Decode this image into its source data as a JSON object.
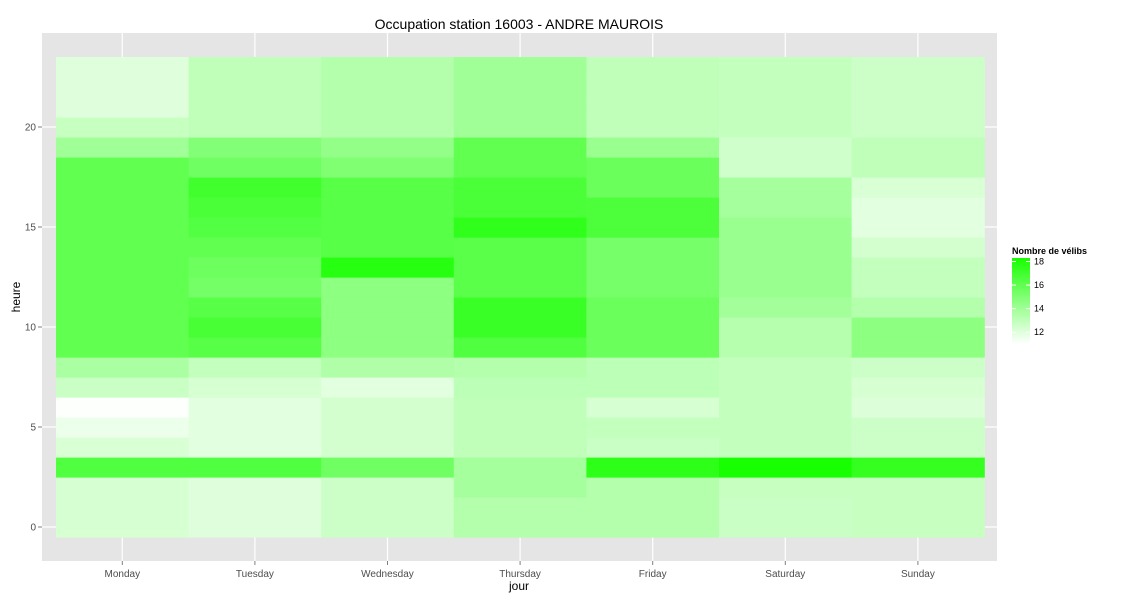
{
  "chart_data": {
    "type": "heatmap",
    "title": "Occupation station 16003 - ANDRE MAUROIS",
    "xlabel": "jour",
    "ylabel": "heure",
    "x": [
      "Monday",
      "Tuesday",
      "Wednesday",
      "Thursday",
      "Friday",
      "Saturday",
      "Sunday"
    ],
    "y": [
      0,
      1,
      2,
      3,
      4,
      5,
      6,
      7,
      8,
      9,
      10,
      11,
      12,
      13,
      14,
      15,
      16,
      17,
      18,
      19,
      20,
      21,
      22,
      23
    ],
    "y_ticks": [
      0,
      5,
      10,
      15,
      20
    ],
    "values": [
      [
        12.3,
        12.3,
        12.3,
        16.5,
        12.2,
        11.6,
        11.1,
        12.7,
        13.7,
        16.0,
        16.0,
        16.0,
        16.0,
        16.0,
        16.0,
        16.0,
        16.0,
        16.0,
        16.0,
        14.0,
        12.8,
        12.0,
        12.0,
        12.0
      ],
      [
        12.0,
        12.0,
        12.0,
        16.5,
        11.9,
        11.9,
        11.9,
        12.3,
        12.9,
        16.3,
        16.8,
        16.3,
        15.4,
        15.6,
        16.0,
        16.4,
        16.7,
        17.0,
        15.5,
        14.9,
        13.0,
        13.0,
        13.0,
        13.0
      ],
      [
        12.6,
        12.6,
        12.6,
        15.5,
        12.4,
        12.4,
        12.4,
        11.9,
        13.5,
        14.6,
        14.6,
        14.6,
        14.6,
        17.8,
        16.3,
        16.3,
        16.3,
        16.3,
        15.0,
        14.4,
        13.4,
        13.4,
        13.4,
        13.4
      ],
      [
        13.4,
        13.4,
        13.8,
        13.8,
        13.0,
        13.0,
        13.0,
        13.1,
        13.4,
        16.5,
        17.2,
        17.2,
        16.2,
        16.2,
        16.2,
        17.5,
        16.7,
        16.7,
        16.0,
        16.0,
        14.0,
        14.0,
        14.0,
        14.0
      ],
      [
        13.4,
        13.4,
        13.4,
        17.6,
        12.7,
        12.9,
        12.3,
        13.1,
        13.1,
        15.7,
        15.7,
        15.7,
        15.3,
        15.3,
        15.3,
        16.6,
        16.6,
        15.7,
        15.7,
        14.2,
        13.0,
        13.0,
        13.0,
        13.0
      ],
      [
        12.7,
        12.7,
        12.8,
        18.3,
        12.9,
        12.9,
        12.9,
        12.9,
        12.9,
        13.3,
        13.3,
        13.9,
        14.2,
        14.2,
        14.2,
        14.2,
        13.8,
        13.8,
        12.5,
        12.5,
        12.9,
        12.9,
        12.9,
        12.9
      ],
      [
        12.8,
        12.8,
        12.8,
        17.4,
        12.6,
        12.6,
        12.1,
        12.3,
        12.6,
        14.6,
        14.6,
        13.4,
        12.9,
        12.9,
        12.4,
        11.9,
        11.9,
        12.2,
        13.0,
        13.0,
        12.6,
        12.6,
        12.6,
        12.6
      ]
    ],
    "legend": {
      "title": "Nombre de vélibs",
      "ticks": [
        12,
        14,
        16,
        18
      ],
      "min": 11,
      "max": 18.3,
      "low_color": "#ffffff",
      "high_color": "#17ff00",
      "placement": "right"
    },
    "grid": true,
    "panel_color": "#e5e5e5",
    "grid_color": "#ffffff"
  }
}
